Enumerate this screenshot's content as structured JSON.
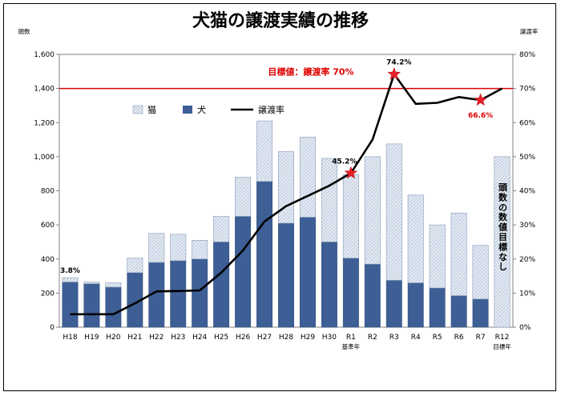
{
  "chart_data": {
    "type": "bar+line",
    "title": "犬猫の譲渡実績の推移",
    "y_left_unit": "頭数",
    "y_right_unit": "譲渡率",
    "ylim_left": [
      0,
      1600
    ],
    "ylim_right": [
      0,
      80
    ],
    "y_left_ticks": [
      "0",
      "200",
      "400",
      "600",
      "800",
      "1,000",
      "1,200",
      "1,400",
      "1,600"
    ],
    "y_right_ticks": [
      "0%",
      "10%",
      "20%",
      "30%",
      "40%",
      "50%",
      "60%",
      "70%",
      "80%"
    ],
    "categories": [
      "H18",
      "H19",
      "H20",
      "H21",
      "H22",
      "H23",
      "H24",
      "H25",
      "H26",
      "H27",
      "H28",
      "H29",
      "H30",
      "R1",
      "R2",
      "R3",
      "R4",
      "R5",
      "R6",
      "R7",
      "R12"
    ],
    "category_sublabels": {
      "R1": "基準年",
      "R12": "目標年"
    },
    "series": [
      {
        "name": "犬",
        "type": "bar-stacked",
        "color": "#3d5f96",
        "values": [
          265,
          255,
          235,
          320,
          380,
          390,
          400,
          500,
          650,
          855,
          610,
          645,
          500,
          405,
          370,
          275,
          260,
          230,
          185,
          165,
          null
        ]
      },
      {
        "name": "猫",
        "type": "bar-stacked",
        "color": "#d9e2ee",
        "values": [
          25,
          10,
          25,
          85,
          170,
          155,
          110,
          150,
          230,
          355,
          420,
          470,
          490,
          490,
          630,
          800,
          515,
          370,
          485,
          315,
          1000
        ]
      },
      {
        "name": "譲渡率",
        "type": "line",
        "axis": "right",
        "color": "#000000",
        "values": [
          3.8,
          3.8,
          3.8,
          7.0,
          10.5,
          10.6,
          10.8,
          16.0,
          22.5,
          31.0,
          35.5,
          38.5,
          41.5,
          45.2,
          55.0,
          74.2,
          65.5,
          65.8,
          67.5,
          66.6,
          70.0
        ]
      }
    ],
    "target_line": {
      "label": "目標値：譲渡率 70%",
      "value": 70,
      "axis": "right",
      "color": "#e00000"
    },
    "annotations": [
      {
        "category": "H18",
        "text": "3.8%"
      },
      {
        "category": "R1",
        "text": "45.2%",
        "star": true
      },
      {
        "category": "R3",
        "text": "74.2%",
        "star": true
      },
      {
        "category": "R7",
        "text": "66.6%",
        "star": true
      }
    ],
    "vertical_note": "頭数の数値目標なし",
    "legend": [
      "猫",
      "犬",
      "譲渡率"
    ],
    "legend_position": "top-left"
  }
}
